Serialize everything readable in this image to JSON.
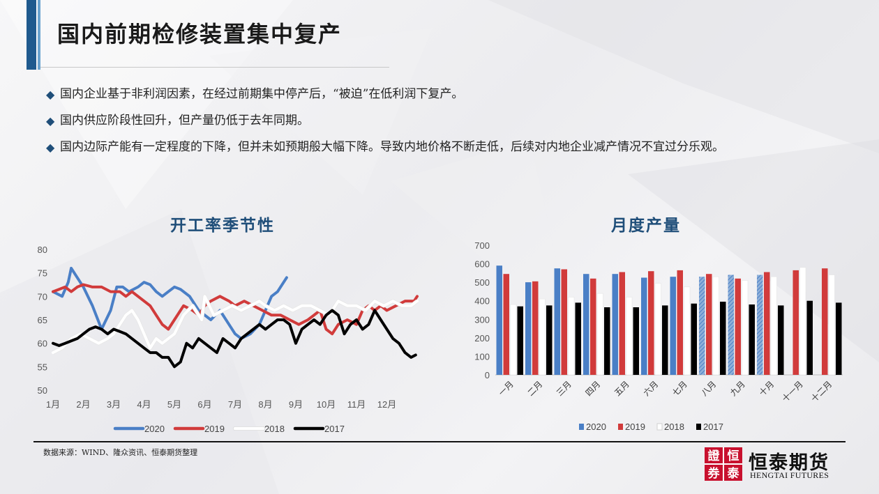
{
  "header": {
    "title": "国内前期检修装置集中复产"
  },
  "bullets": [
    "国内企业基于非利润因素，在经过前期集中停产后，“被迫”在低利润下复产。",
    "国内供应阶段性回升，但产量仍低于去年同期。",
    "国内边际产能有一定程度的下降，但并未如预期般大幅下降。导致内地价格不断走低，后续对内地企业减产情况不宜过分乐观。"
  ],
  "bullet_marker": "◆",
  "footer": {
    "source": "数据来源：WIND、隆众资讯、恒泰期货整理",
    "logo_cn": "恒泰期货",
    "logo_en": "HENGTAI FUTURES",
    "logo_seal_chars": "證恒券泰"
  },
  "colors": {
    "accent": "#1f5a8e",
    "s2020": "#4a7fc6",
    "s2019": "#d13b3b",
    "s2018": "#ffffff",
    "s2017": "#000000",
    "logo_red": "#c8102e"
  },
  "chart_data": [
    {
      "type": "line",
      "title": "开工率季节性",
      "ylim": [
        50,
        80
      ],
      "yticks": [
        "80",
        "75",
        "70",
        "65",
        "60",
        "55",
        "50"
      ],
      "xticks": [
        "1月",
        "2月",
        "3月",
        "4月",
        "5月",
        "6月",
        "7月",
        "8月",
        "9月",
        "10月",
        "11月",
        "12月"
      ],
      "x_domain": [
        1,
        13
      ],
      "grid": false,
      "legend": "bottom",
      "series": [
        {
          "name": "2020",
          "color": "#4a7fc6",
          "x": [
            1.0,
            1.3,
            1.5,
            1.6,
            1.8,
            2.0,
            2.3,
            2.6,
            2.9,
            3.1,
            3.3,
            3.5,
            3.8,
            4.0,
            4.2,
            4.4,
            4.6,
            4.8,
            5.0,
            5.2,
            5.5,
            5.8,
            6.0,
            6.2,
            6.5,
            6.8,
            7.0,
            7.2,
            7.5,
            7.8,
            8.0,
            8.2,
            8.4,
            8.6,
            8.7
          ],
          "y": [
            71,
            70,
            73,
            76,
            74,
            72,
            68,
            63,
            67,
            72,
            72,
            71,
            72,
            73,
            72.5,
            71,
            70,
            71,
            72,
            71.5,
            70,
            67,
            66,
            65,
            67,
            64,
            62,
            61,
            62,
            64,
            67,
            70,
            71,
            73,
            74
          ]
        },
        {
          "name": "2019",
          "color": "#d13b3b",
          "x": [
            1.0,
            1.2,
            1.4,
            1.6,
            1.8,
            2.0,
            2.3,
            2.6,
            2.9,
            3.2,
            3.4,
            3.6,
            3.8,
            4.0,
            4.2,
            4.4,
            4.6,
            4.8,
            5.0,
            5.3,
            5.6,
            5.8,
            6.0,
            6.2,
            6.5,
            6.8,
            7.0,
            7.3,
            7.6,
            7.9,
            8.2,
            8.5,
            8.8,
            9.1,
            9.4,
            9.6,
            9.8,
            10.0,
            10.2,
            10.4,
            10.7,
            11.0,
            11.2,
            11.4,
            11.6,
            11.8,
            12.0,
            12.3,
            12.6,
            12.9,
            13.0
          ],
          "y": [
            71,
            71.5,
            72,
            71,
            72,
            72.5,
            72,
            72,
            71,
            71,
            70,
            71,
            70,
            69,
            68,
            66,
            64,
            63,
            65,
            68,
            67,
            66,
            68,
            69,
            70,
            69,
            68,
            69,
            68,
            67,
            66,
            66,
            65,
            64,
            65,
            66,
            67,
            63,
            62,
            64,
            65,
            64,
            67,
            68,
            67,
            68,
            67,
            68,
            69,
            69,
            70
          ]
        },
        {
          "name": "2018",
          "color": "#ffffff",
          "x": [
            1.0,
            1.3,
            1.6,
            1.9,
            2.2,
            2.5,
            2.8,
            3.0,
            3.2,
            3.4,
            3.6,
            3.8,
            4.0,
            4.2,
            4.4,
            4.6,
            4.8,
            5.0,
            5.3,
            5.6,
            5.9,
            6.0,
            6.3,
            6.6,
            6.9,
            7.2,
            7.5,
            7.8,
            8.0,
            8.3,
            8.6,
            8.9,
            9.2,
            9.5,
            9.8,
            10.1,
            10.4,
            10.7,
            11.0,
            11.3,
            11.6,
            11.9,
            12.2,
            12.5,
            12.8,
            13.0
          ],
          "y": [
            58,
            59,
            61,
            62,
            61,
            60,
            61,
            62,
            64,
            66,
            67,
            65,
            62,
            59,
            61,
            60,
            61,
            62,
            66,
            68,
            65,
            70,
            66,
            67,
            68,
            67,
            68,
            69,
            68,
            67,
            68,
            67,
            68,
            68,
            67,
            66,
            69,
            68,
            68,
            67,
            69,
            68,
            69,
            68,
            68,
            69
          ]
        },
        {
          "name": "2017",
          "color": "#000000",
          "x": [
            1.0,
            1.2,
            1.4,
            1.6,
            1.8,
            2.0,
            2.2,
            2.4,
            2.6,
            2.8,
            3.0,
            3.2,
            3.4,
            3.6,
            3.8,
            4.0,
            4.2,
            4.4,
            4.6,
            4.8,
            5.0,
            5.2,
            5.4,
            5.6,
            5.8,
            6.0,
            6.2,
            6.4,
            6.6,
            6.8,
            7.0,
            7.2,
            7.4,
            7.6,
            7.8,
            8.0,
            8.2,
            8.4,
            8.6,
            8.8,
            9.0,
            9.2,
            9.4,
            9.6,
            9.8,
            10.0,
            10.2,
            10.4,
            10.6,
            10.8,
            11.0,
            11.2,
            11.4,
            11.6,
            11.8,
            12.0,
            12.2,
            12.4,
            12.6,
            12.8,
            12.95
          ],
          "y": [
            60,
            59.5,
            60,
            60.5,
            61,
            62,
            63,
            63.5,
            63,
            62,
            63,
            62.5,
            62,
            61,
            60,
            59,
            58,
            58,
            57,
            57,
            55,
            56,
            60,
            59,
            61,
            60,
            59,
            58,
            61,
            60,
            59,
            61,
            62,
            63,
            64,
            63,
            64,
            65,
            65,
            64,
            60,
            63,
            64,
            65,
            64,
            66,
            67,
            66,
            62,
            64,
            65,
            63,
            64,
            67,
            65,
            63,
            61,
            60,
            58,
            57,
            57.5
          ]
        }
      ]
    },
    {
      "type": "bar",
      "title": "月度产量",
      "ylim": [
        0,
        700
      ],
      "yticks": [
        "700",
        "600",
        "500",
        "400",
        "300",
        "200",
        "100",
        "0"
      ],
      "categories": [
        "一月",
        "二月",
        "三月",
        "四月",
        "五月",
        "六月",
        "七月",
        "八月",
        "九月",
        "十月",
        "十一月",
        "十二月"
      ],
      "grid": false,
      "legend": "bottom",
      "series": [
        {
          "name": "2020",
          "color": "#4a7fc6",
          "values": [
            590,
            500,
            575,
            545,
            545,
            525,
            530,
            530,
            540,
            540,
            null,
            null
          ],
          "hatched_from_index": 7
        },
        {
          "name": "2019",
          "color": "#d13b3b",
          "values": [
            545,
            505,
            570,
            520,
            555,
            560,
            565,
            545,
            520,
            555,
            565,
            575
          ]
        },
        {
          "name": "2018",
          "color": "#ffffff",
          "values": [
            380,
            410,
            420,
            440,
            420,
            495,
            475,
            530,
            510,
            530,
            580,
            540
          ]
        },
        {
          "name": "2017",
          "color": "#000000",
          "values": [
            370,
            375,
            390,
            365,
            365,
            375,
            385,
            395,
            380,
            375,
            400,
            390
          ]
        }
      ]
    }
  ]
}
